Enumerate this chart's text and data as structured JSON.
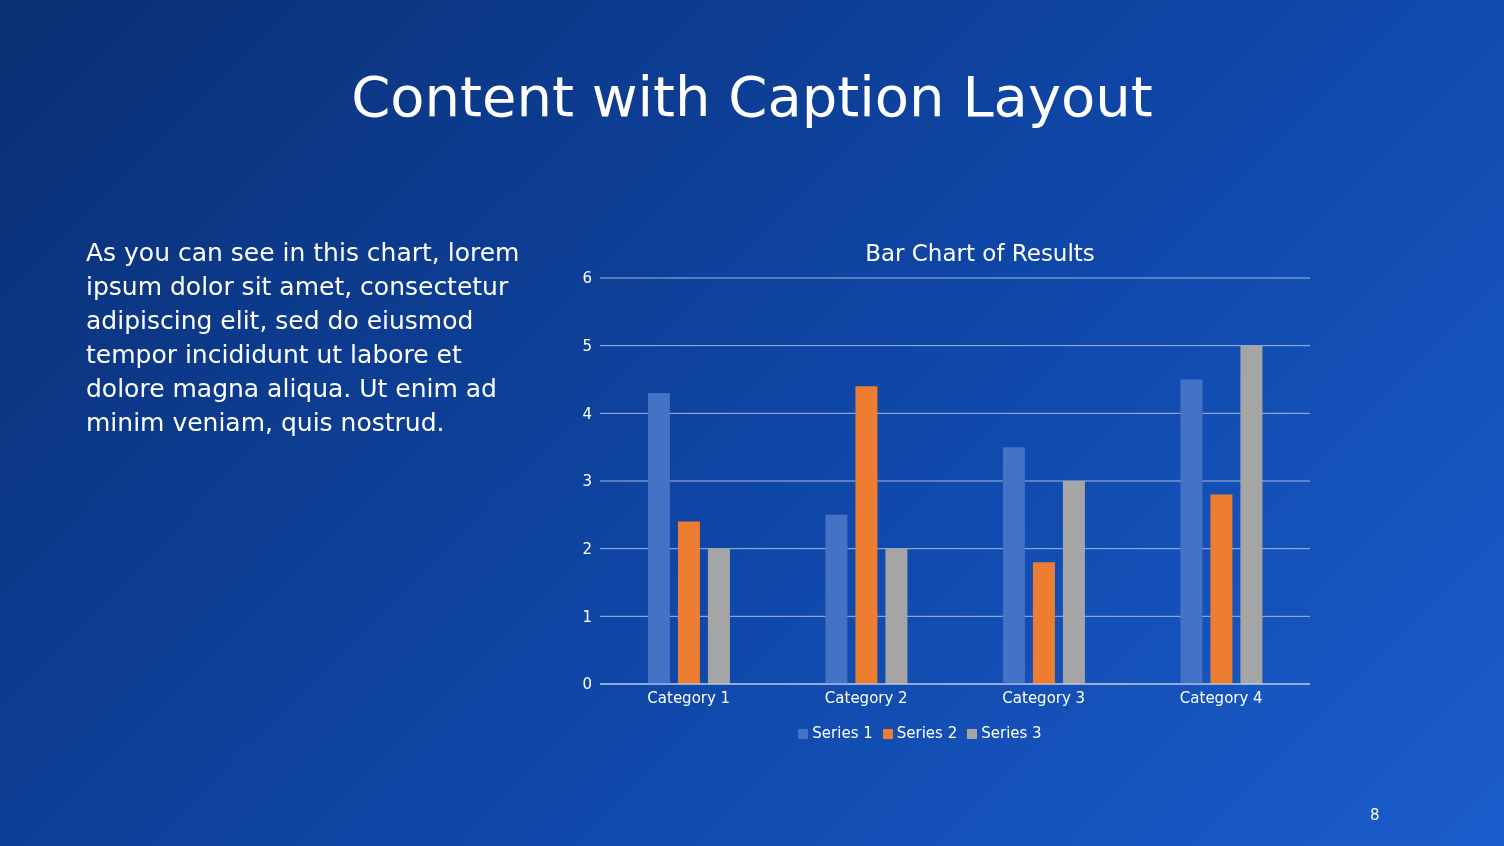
{
  "chart_data": {
    "type": "bar",
    "title": "Content with Caption Layout",
    "subtitle": "Bar Chart of Results",
    "categories": [
      "Category 1",
      "Category 2",
      "Category 3",
      "Category 4"
    ],
    "series": [
      {
        "name": "Series 1",
        "color": "#4472c4",
        "values": [
          4.3,
          2.5,
          3.5,
          4.5
        ]
      },
      {
        "name": "Series 2",
        "color": "#ed7d31",
        "values": [
          2.4,
          4.4,
          1.8,
          2.8
        ]
      },
      {
        "name": "Series 3",
        "color": "#a5a5a5",
        "values": [
          2,
          2,
          3,
          5
        ]
      }
    ],
    "ylim": [
      0,
      6
    ],
    "yticks": [
      0,
      1,
      2,
      3,
      4,
      5,
      6
    ],
    "grid": "y",
    "legend": "bottom",
    "annotations": [
      "As you can see in this chart, lorem ipsum dolor sit amet, consectetur adipiscing elit, sed do eiusmod tempor incididunt ut labore et dolore magna aliqua. Ut enim ad minim veniam, quis nostrud.",
      "8"
    ]
  }
}
